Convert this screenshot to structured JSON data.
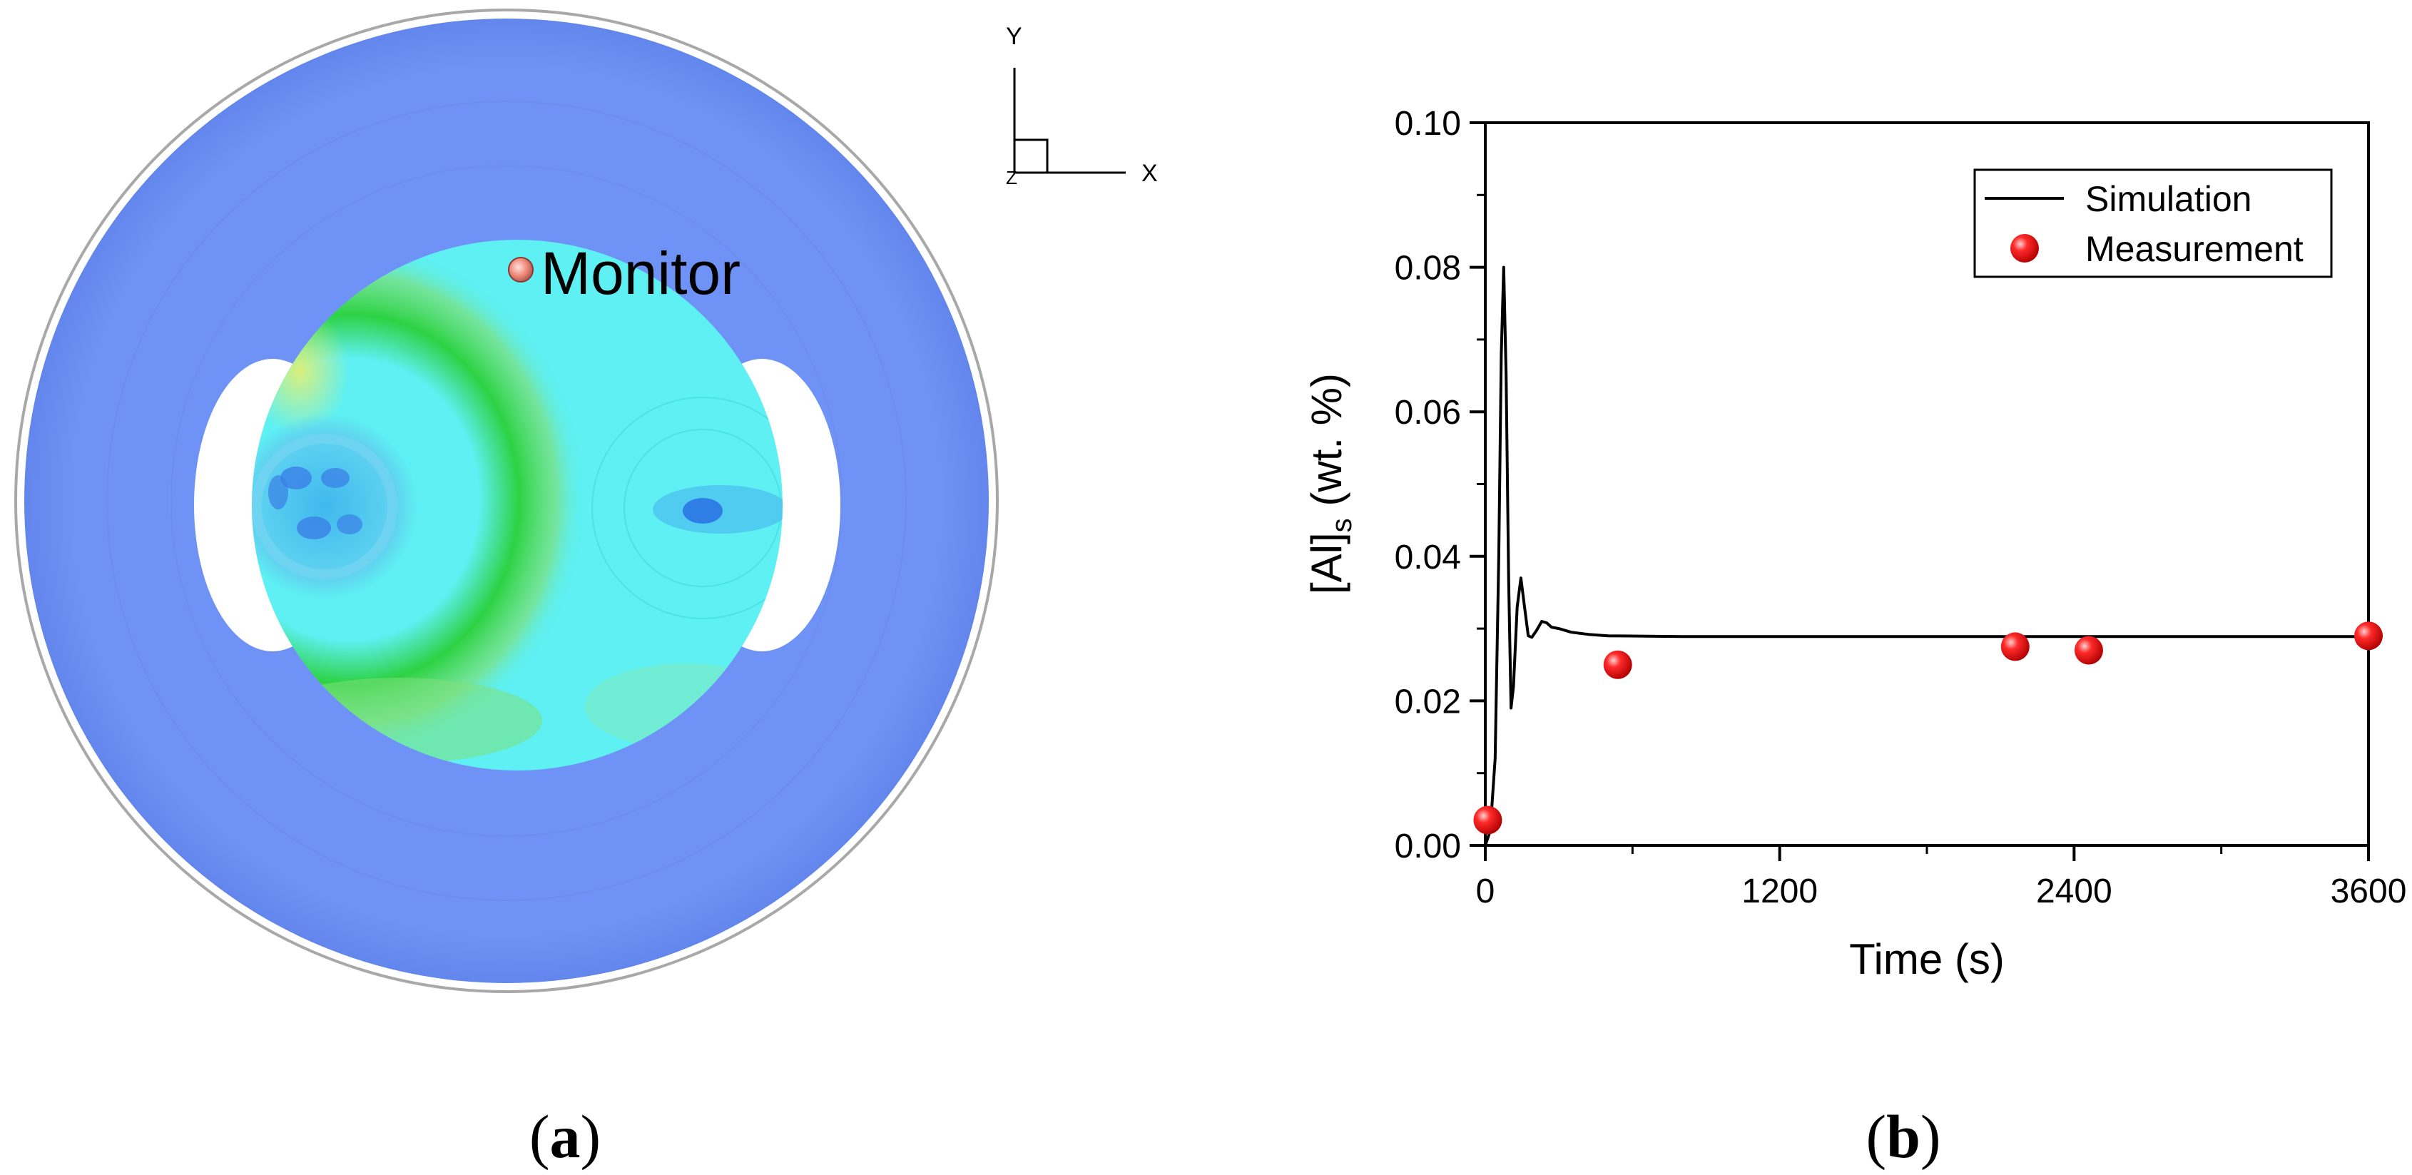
{
  "panels": {
    "a": {
      "label_open": "(",
      "label_letter": "a",
      "label_close": ")"
    },
    "b": {
      "label_open": "(",
      "label_letter": "b",
      "label_close": ")"
    }
  },
  "contour": {
    "monitor_label": "Monitor",
    "axis_y": "Y",
    "axis_x": "X",
    "axis_z": "Z",
    "colors": {
      "outer_ring": "#6e92f5",
      "inner_disc": "#5ef0f2",
      "hot_zone": "#2ad13a",
      "vortex": "#4c9ef0",
      "monitor_point": "#ef8b7d"
    }
  },
  "chart_data": {
    "type": "line",
    "title": "",
    "xlabel": "Time (s)",
    "ylabel_main": "[Al]",
    "ylabel_sub": "s",
    "ylabel_rest": " (wt. %)",
    "xlim": [
      0,
      3600
    ],
    "ylim": [
      0,
      0.1
    ],
    "x_ticks": [
      0,
      1200,
      2400,
      3600
    ],
    "x_tick_labels": [
      "0",
      "1200",
      "2400",
      "3600"
    ],
    "y_ticks": [
      0,
      0.02,
      0.04,
      0.06,
      0.08,
      0.1
    ],
    "y_tick_labels": [
      "0.00",
      "0.02",
      "0.04",
      "0.06",
      "0.08",
      "0.10"
    ],
    "legend_position": "top-right",
    "series": [
      {
        "name": "Simulation",
        "style": "line",
        "color": "#000000",
        "x": [
          0,
          20,
          40,
          55,
          65,
          75,
          85,
          95,
          105,
          115,
          130,
          145,
          160,
          175,
          190,
          210,
          230,
          250,
          270,
          300,
          350,
          420,
          500,
          800,
          1200,
          1800,
          2400,
          3000,
          3600
        ],
        "y": [
          0.0,
          0.002,
          0.012,
          0.04,
          0.068,
          0.08,
          0.065,
          0.037,
          0.019,
          0.022,
          0.033,
          0.037,
          0.033,
          0.029,
          0.0288,
          0.0298,
          0.031,
          0.0308,
          0.0302,
          0.03,
          0.0295,
          0.0292,
          0.029,
          0.0289,
          0.0289,
          0.0289,
          0.0289,
          0.0289,
          0.0289
        ]
      },
      {
        "name": "Measurement",
        "style": "scatter",
        "color": "#ff0000",
        "x": [
          10,
          540,
          2160,
          2460,
          3600
        ],
        "y": [
          0.0035,
          0.025,
          0.0275,
          0.027,
          0.029
        ]
      }
    ]
  }
}
